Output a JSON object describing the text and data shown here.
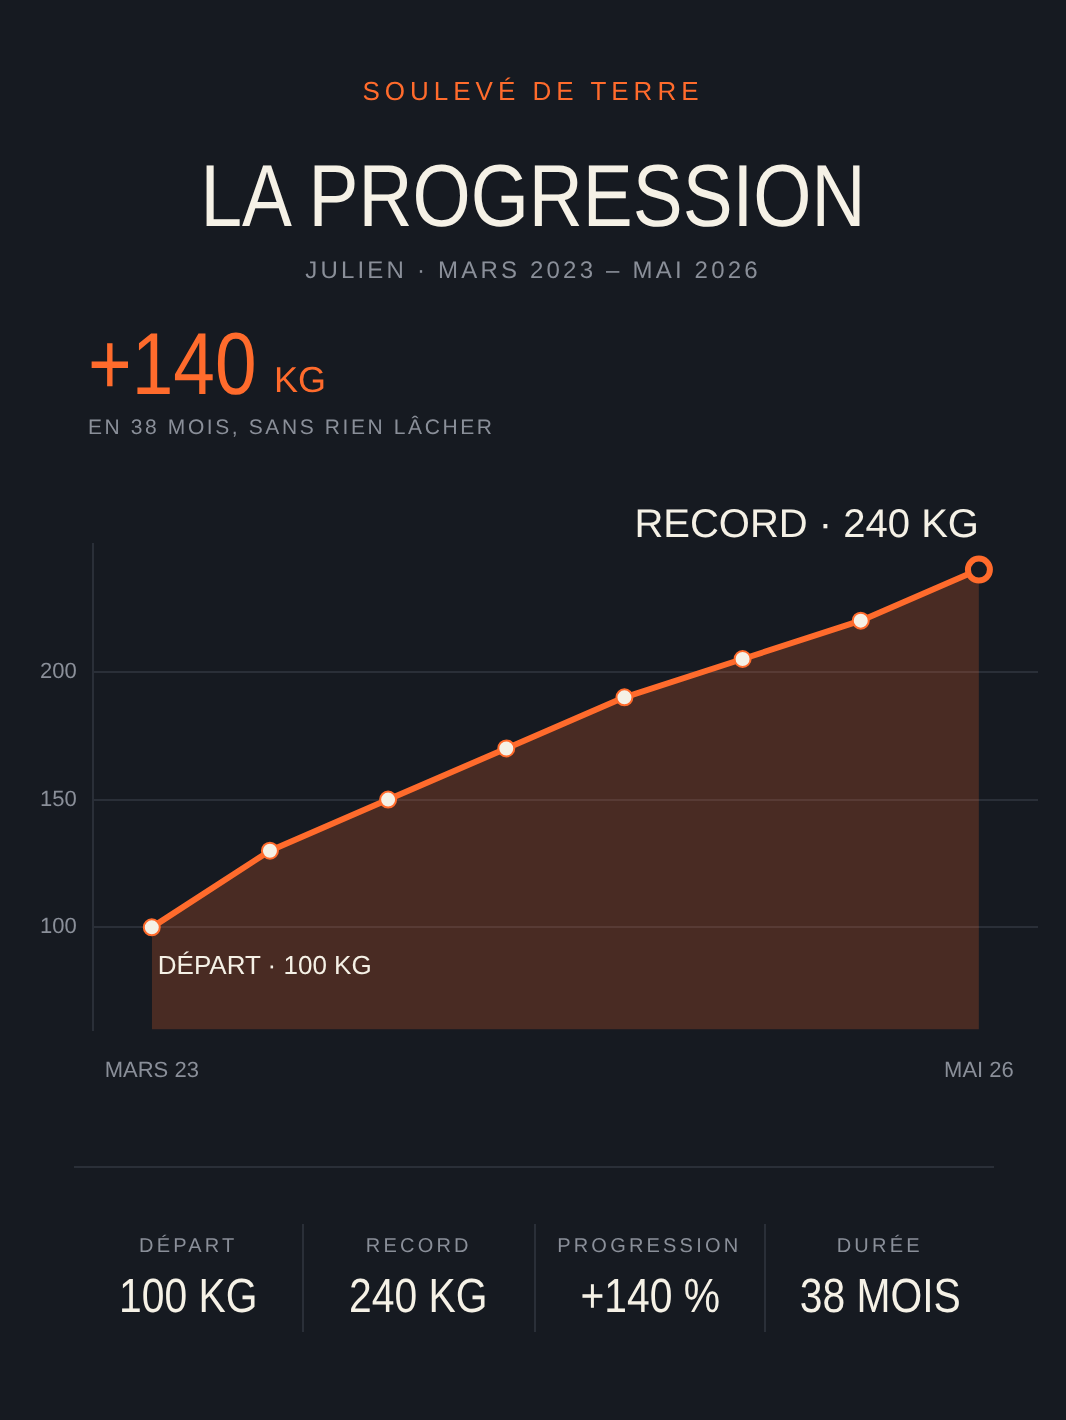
{
  "chart_data": {
    "type": "area",
    "title": "LA PROGRESSION",
    "subtitle": "JULIEN · MARS 2023 – MAI 2026",
    "categories": [
      "MARS 23",
      null,
      null,
      null,
      null,
      null,
      null,
      "MAI 26"
    ],
    "series": [
      {
        "color": "#ff6b2c",
        "values": [
          100,
          130,
          150,
          170,
          190,
          205,
          220,
          240
        ]
      }
    ],
    "ylim": [
      60,
      250
    ],
    "yticks": [
      100,
      150,
      200
    ],
    "grid": "y",
    "marker": "circle",
    "legend": false,
    "annotations": [
      "SOULEVÉ DE TERRE",
      "+140",
      "KG",
      "EN 38 MOIS, SANS RIEN LÂCHER",
      {
        "text": "RECORD · 240 KG",
        "x": "MAI 26",
        "y": 240
      },
      {
        "text": "DÉPART · 100 KG",
        "x": "MARS 23",
        "y": 100
      },
      "DÉPART",
      "100 KG",
      "RECORD",
      "240 KG",
      "PROGRESSION",
      "+140 %",
      "DURÉE",
      "38 MOIS"
    ]
  }
}
